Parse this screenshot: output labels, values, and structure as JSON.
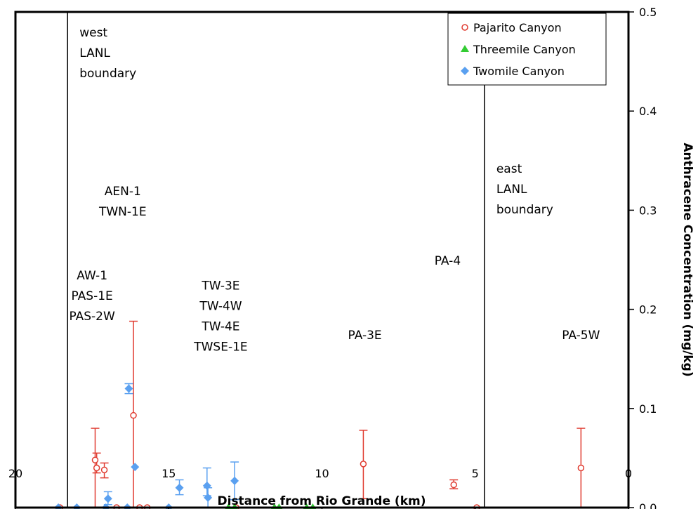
{
  "chart_data": {
    "type": "scatter",
    "xlabel": "Distance from Rio Grande (km)",
    "ylabel": "Anthracene Concentration (mg/kg)",
    "xlim": [
      20,
      0
    ],
    "ylim": [
      0,
      0.5
    ],
    "x_ticks": [
      "20",
      "15",
      "10",
      "5",
      "0"
    ],
    "y_ticks": [
      "0.0",
      "0.1",
      "0.2",
      "0.3",
      "0.4",
      "0.5"
    ],
    "y_axis_side": "right",
    "x_reversed": true,
    "grid": false,
    "legend_position": "top-right",
    "colors": {
      "Pajarito Canyon": "#e03c31",
      "Threemile Canyon": "#33cc33",
      "Twomile Canyon": "#5aa0f0"
    },
    "series": [
      {
        "name": "Pajarito Canyon",
        "marker": "open-circle",
        "points": [
          {
            "x": 18.55,
            "y": 0.0
          },
          {
            "x": 17.4,
            "y": 0.048,
            "err_low": 0.0,
            "err_high": 0.08
          },
          {
            "x": 17.35,
            "y": 0.04,
            "err_low": 0.035,
            "err_high": 0.055
          },
          {
            "x": 17.1,
            "y": 0.038,
            "err_low": 0.03,
            "err_high": 0.045
          },
          {
            "x": 16.7,
            "y": 0.0
          },
          {
            "x": 16.15,
            "y": 0.093,
            "err_low": 0.0,
            "err_high": 0.188
          },
          {
            "x": 15.95,
            "y": 0.0
          },
          {
            "x": 15.7,
            "y": 0.0
          },
          {
            "x": 12.8,
            "y": 0.0
          },
          {
            "x": 8.65,
            "y": 0.044,
            "err_low": 0.009,
            "err_high": 0.078
          },
          {
            "x": 5.7,
            "y": 0.023,
            "err_low": 0.019,
            "err_high": 0.028
          },
          {
            "x": 4.95,
            "y": 0.0
          },
          {
            "x": 1.55,
            "y": 0.04,
            "err_low": 0.0,
            "err_high": 0.08
          }
        ]
      },
      {
        "name": "Threemile Canyon",
        "marker": "filled-triangle",
        "points": [
          {
            "x": 13.05,
            "y": 0.0
          },
          {
            "x": 12.85,
            "y": 0.0
          },
          {
            "x": 11.55,
            "y": 0.0
          },
          {
            "x": 11.4,
            "y": 0.0
          },
          {
            "x": 10.5,
            "y": 0.0
          },
          {
            "x": 10.3,
            "y": 0.0
          }
        ]
      },
      {
        "name": "Twomile Canyon",
        "marker": "filled-diamond",
        "points": [
          {
            "x": 18.6,
            "y": 0.0
          },
          {
            "x": 18.0,
            "y": 0.0
          },
          {
            "x": 17.05,
            "y": 0.0
          },
          {
            "x": 16.98,
            "y": 0.009,
            "err_low": 0.003,
            "err_high": 0.016
          },
          {
            "x": 16.35,
            "y": 0.0
          },
          {
            "x": 16.3,
            "y": 0.12,
            "err_low": 0.115,
            "err_high": 0.125
          },
          {
            "x": 16.1,
            "y": 0.041
          },
          {
            "x": 15.0,
            "y": 0.0
          },
          {
            "x": 14.65,
            "y": 0.02,
            "err_low": 0.013,
            "err_high": 0.028
          },
          {
            "x": 13.75,
            "y": 0.022,
            "err_low": 0.012,
            "err_high": 0.04
          },
          {
            "x": 13.72,
            "y": 0.01,
            "err_low": 0.0,
            "err_high": 0.02
          },
          {
            "x": 12.85,
            "y": 0.027,
            "err_low": 0.008,
            "err_high": 0.046
          }
        ]
      }
    ],
    "reference_lines": [
      {
        "x": 18.3,
        "label_lines": [
          "west",
          "LANL",
          "boundary"
        ]
      },
      {
        "x": 4.7,
        "label_lines": [
          "east",
          "LANL",
          "boundary"
        ]
      }
    ],
    "annotations": [
      {
        "id": "ann-aw1",
        "x": 17.5,
        "y": 0.23,
        "lines": [
          "AW-1",
          "PAS-1E",
          "PAS-2W"
        ]
      },
      {
        "id": "ann-aen1",
        "x": 16.5,
        "y": 0.315,
        "lines": [
          "AEN-1",
          "TWN-1E"
        ]
      },
      {
        "id": "ann-tw3e",
        "x": 13.3,
        "y": 0.22,
        "lines": [
          "TW-3E",
          "TW-4W",
          "TW-4E",
          "TWSE-1E"
        ]
      },
      {
        "id": "ann-pa3e",
        "x": 8.6,
        "y": 0.17,
        "lines": [
          "PA-3E"
        ]
      },
      {
        "id": "ann-pa4",
        "x": 5.9,
        "y": 0.245,
        "lines": [
          "PA-4"
        ]
      },
      {
        "id": "ann-pa5w",
        "x": 1.55,
        "y": 0.17,
        "lines": [
          "PA-5W"
        ]
      }
    ]
  }
}
